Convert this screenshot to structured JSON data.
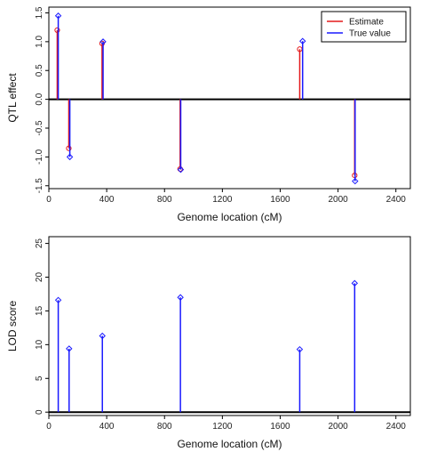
{
  "chart_data": [
    {
      "type": "scatter",
      "xlabel": "Genome location (cM)",
      "ylabel": "QTL effect",
      "xlim": [
        0,
        2500
      ],
      "ylim": [
        -1.55,
        1.6
      ],
      "xticks": [
        0,
        400,
        800,
        1200,
        1600,
        2000,
        2400
      ],
      "yticks": [
        -1.5,
        -1.0,
        -0.5,
        0.0,
        0.5,
        1.0,
        1.5
      ],
      "ytick_labels": [
        "-1.5",
        "-1.0",
        "-0.5",
        "0.0",
        "0.5",
        "1.0",
        "1.5"
      ],
      "zero_line": true,
      "grid": false,
      "legend_position": "top-right",
      "series": [
        {
          "name": "Estimate",
          "color": "#e41a1c",
          "marker": "circle",
          "x": [
            58,
            138,
            368,
            908,
            1735,
            2115
          ],
          "values": [
            1.2,
            -0.85,
            0.97,
            -1.21,
            0.87,
            -1.32
          ]
        },
        {
          "name": "True value",
          "color": "#1a1aff",
          "marker": "diamond",
          "x": [
            65,
            145,
            375,
            912,
            1755,
            2118
          ],
          "values": [
            1.45,
            -1.0,
            1.0,
            -1.22,
            1.01,
            -1.42
          ]
        }
      ]
    },
    {
      "type": "scatter",
      "xlabel": "Genome location (cM)",
      "ylabel": "LOD score",
      "xlim": [
        0,
        2500
      ],
      "ylim": [
        -0.5,
        26
      ],
      "xticks": [
        0,
        400,
        800,
        1200,
        1600,
        2000,
        2400
      ],
      "yticks": [
        0,
        5,
        10,
        15,
        20,
        25
      ],
      "ytick_labels": [
        "0",
        "5",
        "10",
        "15",
        "20",
        "25"
      ],
      "zero_line": true,
      "grid": false,
      "series": [
        {
          "color": "#1a1aff",
          "marker": "diamond",
          "x": [
            65,
            140,
            370,
            910,
            1735,
            2115
          ],
          "values": [
            16.6,
            9.4,
            11.3,
            17.0,
            9.3,
            19.1
          ]
        }
      ]
    }
  ]
}
